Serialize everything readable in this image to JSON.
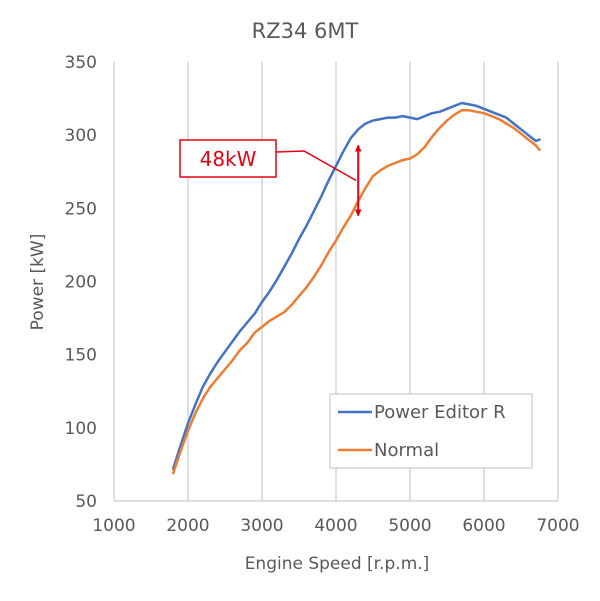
{
  "chart_data": {
    "type": "line",
    "title": "RZ34 6MT",
    "xlabel": "Engine Speed [r.p.m.]",
    "ylabel": "Power [kW]",
    "xlim": [
      1000,
      7000
    ],
    "ylim": [
      50,
      350
    ],
    "xticks": [
      1000,
      2000,
      3000,
      4000,
      5000,
      6000,
      7000
    ],
    "yticks": [
      50,
      100,
      150,
      200,
      250,
      300,
      350
    ],
    "grid": "vertical",
    "legend": "bottom-right",
    "series": [
      {
        "name": "Power Editor R",
        "color": "#4472C4",
        "x": [
          1800,
          1900,
          2000,
          2100,
          2200,
          2300,
          2400,
          2500,
          2600,
          2700,
          2800,
          2900,
          3000,
          3100,
          3200,
          3300,
          3400,
          3500,
          3600,
          3700,
          3800,
          3900,
          4000,
          4100,
          4200,
          4300,
          4400,
          4500,
          4600,
          4700,
          4800,
          4900,
          5000,
          5100,
          5200,
          5300,
          5400,
          5500,
          5600,
          5700,
          5800,
          5900,
          6000,
          6100,
          6200,
          6300,
          6400,
          6500,
          6600,
          6700,
          6750
        ],
        "y": [
          72,
          88,
          103,
          116,
          128,
          137,
          145,
          152,
          159,
          166,
          172,
          178,
          186,
          193,
          201,
          210,
          219,
          229,
          238,
          248,
          258,
          269,
          279,
          289,
          298,
          304,
          308,
          310,
          311,
          312,
          312,
          313,
          312,
          311,
          313,
          315,
          316,
          318,
          320,
          322,
          321,
          320,
          318,
          316,
          314,
          312,
          308,
          304,
          300,
          296,
          297
        ]
      },
      {
        "name": "Normal",
        "color": "#ED7D31",
        "x": [
          1800,
          1900,
          2000,
          2100,
          2200,
          2300,
          2400,
          2500,
          2600,
          2700,
          2800,
          2900,
          3000,
          3100,
          3200,
          3300,
          3400,
          3500,
          3600,
          3700,
          3800,
          3900,
          4000,
          4100,
          4200,
          4300,
          4400,
          4500,
          4600,
          4700,
          4800,
          4900,
          5000,
          5100,
          5200,
          5300,
          5400,
          5500,
          5600,
          5700,
          5800,
          5900,
          6000,
          6100,
          6200,
          6300,
          6400,
          6500,
          6600,
          6700,
          6750
        ],
        "y": [
          69,
          84,
          98,
          110,
          120,
          128,
          134,
          140,
          146,
          153,
          158,
          165,
          169,
          173,
          176,
          179,
          184,
          190,
          196,
          203,
          211,
          220,
          228,
          237,
          245,
          255,
          264,
          272,
          276,
          279,
          281,
          283,
          284,
          287,
          292,
          299,
          305,
          310,
          314,
          317,
          317,
          316,
          315,
          313,
          311,
          308,
          305,
          301,
          297,
          293,
          290
        ]
      }
    ],
    "annotation": {
      "label": "48kW",
      "rpm": 4300,
      "from_value": 293,
      "to_value": 245
    }
  },
  "colors": {
    "annotation": "#E60012",
    "axis": "#BFBFBF",
    "text": "#595959"
  }
}
